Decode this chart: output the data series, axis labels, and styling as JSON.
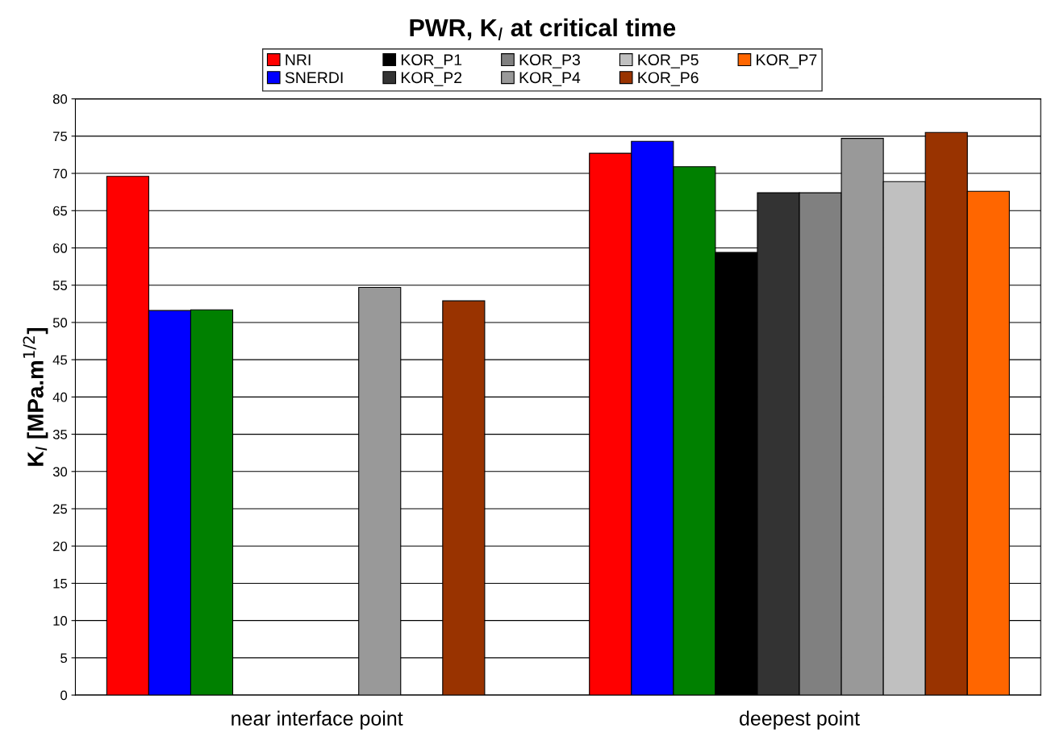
{
  "chart_data": {
    "type": "bar",
    "title": "PWR, K$_{I}$ at critical time",
    "ylabel": "K$_{I}$ [MPa.m$^{1/2}$]",
    "categories": [
      "near interface point",
      "deepest point"
    ],
    "series": [
      {
        "name": "NRI",
        "color": "#ff0000",
        "values": [
          69.6,
          72.7
        ]
      },
      {
        "name": "SNERDI",
        "color": "#0000ff",
        "values": [
          51.6,
          74.3
        ]
      },
      {
        "color": "#008000",
        "values": [
          51.7,
          70.9
        ]
      },
      {
        "name": "KOR_P1",
        "color": "#000000",
        "values": [
          null,
          59.4
        ]
      },
      {
        "name": "KOR_P2",
        "color": "#333333",
        "values": [
          null,
          67.4
        ]
      },
      {
        "name": "KOR_P3",
        "color": "#808080",
        "values": [
          null,
          67.4
        ]
      },
      {
        "name": "KOR_P4",
        "color": "#999999",
        "values": [
          54.7,
          74.7
        ]
      },
      {
        "name": "KOR_P5",
        "color": "#c0c0c0",
        "values": [
          null,
          68.9
        ]
      },
      {
        "name": "KOR_P6",
        "color": "#993300",
        "values": [
          52.9,
          75.5
        ]
      },
      {
        "name": "KOR_P7",
        "color": "#ff6600",
        "values": [
          null,
          67.6
        ]
      }
    ],
    "ylim": [
      0,
      80
    ],
    "yticks": [
      0,
      5,
      10,
      15,
      20,
      25,
      30,
      35,
      40,
      45,
      50,
      55,
      60,
      65,
      70,
      75,
      80
    ],
    "grid": "y",
    "legend": "top"
  }
}
